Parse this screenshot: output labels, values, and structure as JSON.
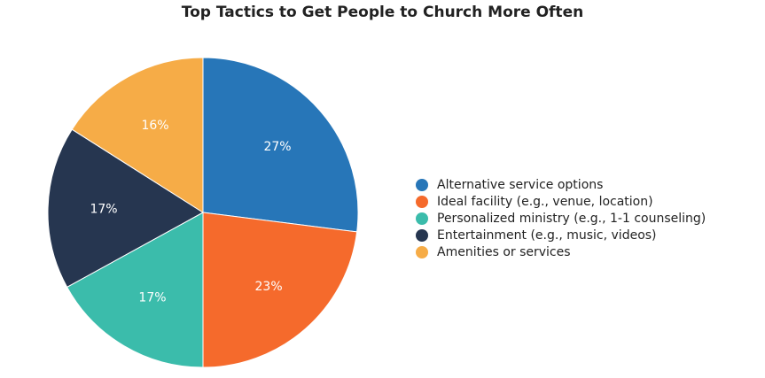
{
  "chart_data": {
    "type": "pie",
    "title": "Top Tactics to Get People to Church More Often",
    "legend_position": "right",
    "slices": [
      {
        "label": "Alternative service options",
        "value": 27,
        "display": "27%",
        "color": "#2776b8"
      },
      {
        "label": "Ideal facility (e.g., venue, location)",
        "value": 23,
        "display": "23%",
        "color": "#f56a2c"
      },
      {
        "label": "Personalized ministry (e.g., 1-1 counseling)",
        "value": 17,
        "display": "17%",
        "color": "#3bbcab"
      },
      {
        "label": "Entertainment (e.g., music, videos)",
        "value": 17,
        "display": "17%",
        "color": "#263650"
      },
      {
        "label": "Amenities or services",
        "value": 16,
        "display": "16%",
        "color": "#f6ac47"
      }
    ]
  }
}
